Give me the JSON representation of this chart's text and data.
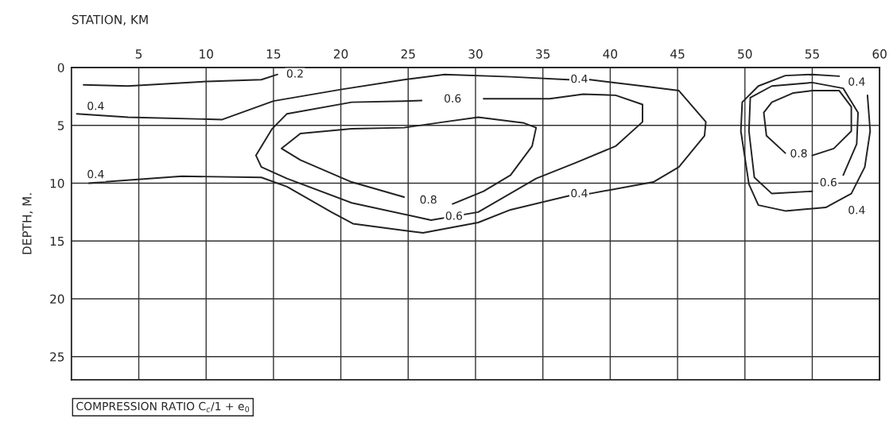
{
  "chart_data": {
    "type": "line",
    "xlabel": "STATION, KM",
    "ylabel": "DEPTH, M.",
    "xlim": [
      0,
      60
    ],
    "xticks": [
      5,
      10,
      15,
      20,
      25,
      30,
      35,
      40,
      45,
      50,
      55,
      60
    ],
    "ylim": [
      27,
      0
    ],
    "yticks": [
      0,
      5,
      10,
      15,
      20,
      25
    ],
    "grid": true,
    "series": [
      {
        "color": "#222222",
        "x": [
          0.9,
          4.2,
          10.1,
          14.1,
          15.3
        ],
        "values": [
          1.5,
          1.6,
          1.2,
          1.05,
          0.6
        ]
      },
      {
        "color": "#222222",
        "x": [
          0.4,
          4.2,
          11.2,
          15,
          20,
          24.7,
          27.7,
          32.6,
          36.9,
          38.5,
          42.4,
          45.1,
          47.1,
          47,
          45.1,
          43.2,
          38.5,
          36.9,
          32.6,
          30.2,
          26.1,
          20.9,
          19.3,
          16,
          14.1,
          8.2,
          2.3,
          1.3
        ],
        "values": [
          4.0,
          4.3,
          4.5,
          2.9,
          1.9,
          1.05,
          0.6,
          0.8,
          1.05,
          1.05,
          1.6,
          2.0,
          4.7,
          5.9,
          8.6,
          9.9,
          10.9,
          11.1,
          12.3,
          13.4,
          14.3,
          13.5,
          12.5,
          10.3,
          9.5,
          9.4,
          9.9,
          10.0
        ]
      },
      {
        "color": "#222222",
        "x": [
          30.6,
          35.5,
          38,
          40.4,
          42.4,
          42.4,
          40.4,
          37.5,
          34.5,
          30.2,
          26.7,
          20.8,
          16,
          14.1,
          13.7,
          14.9,
          16,
          20.8,
          24.7,
          26.0
        ],
        "values": [
          2.7,
          2.7,
          2.3,
          2.4,
          3.2,
          4.7,
          6.8,
          8.2,
          9.6,
          12.5,
          13.2,
          11.7,
          9.6,
          8.6,
          7.6,
          5.3,
          4.0,
          3.0,
          2.9,
          2.85
        ]
      },
      {
        "color": "#222222",
        "x": [
          24.7,
          20.8,
          17,
          15.6,
          17,
          20.8,
          24.7,
          27.7,
          30.2,
          33.6,
          34.5,
          34.2,
          32.6,
          30.6,
          28.3
        ],
        "values": [
          11.2,
          9.9,
          8.0,
          7.0,
          5.7,
          5.3,
          5.2,
          4.7,
          4.3,
          4.8,
          5.2,
          6.8,
          9.3,
          10.7,
          11.8
        ]
      },
      {
        "color": "#222222",
        "x": [
          59.1,
          59.3,
          58.9,
          57.9,
          56,
          53,
          51,
          50.3,
          49.7,
          49.8,
          51,
          53,
          55,
          57.0
        ],
        "values": [
          2.4,
          5.5,
          8.6,
          10.9,
          12.1,
          12.4,
          11.9,
          10.1,
          5.5,
          3.0,
          1.6,
          0.7,
          0.6,
          0.75
        ]
      },
      {
        "color": "#222222",
        "x": [
          55,
          52,
          50.7,
          50.3,
          50.4,
          52,
          55,
          57.3,
          58.4,
          58.3,
          57.3
        ],
        "values": [
          10.7,
          10.9,
          9.5,
          5.5,
          2.6,
          1.6,
          1.3,
          1.8,
          3.9,
          6.6,
          9.3
        ]
      },
      {
        "color": "#222222",
        "x": [
          53,
          51.6,
          51.4,
          52,
          53.6,
          55,
          57,
          57.9,
          57.9,
          56.6,
          55
        ],
        "values": [
          7.4,
          5.9,
          3.9,
          3.0,
          2.2,
          2.0,
          2.0,
          3.4,
          5.5,
          7.0,
          7.6
        ]
      }
    ],
    "annotations": [
      {
        "text": "0.2",
        "x": 16.6,
        "y": 0.6
      },
      {
        "text": "0.4",
        "x": 1.8,
        "y": 3.4
      },
      {
        "text": "0.4",
        "x": 37.7,
        "y": 1.05
      },
      {
        "text": "0.4",
        "x": 37.7,
        "y": 10.95
      },
      {
        "text": "0.4",
        "x": 1.8,
        "y": 9.3
      },
      {
        "text": "0.6",
        "x": 28.3,
        "y": 2.75
      },
      {
        "text": "0.6",
        "x": 28.4,
        "y": 12.9
      },
      {
        "text": "0.8",
        "x": 26.5,
        "y": 11.5
      },
      {
        "text": "0.4",
        "x": 58.3,
        "y": 1.3
      },
      {
        "text": "0.6",
        "x": 56.2,
        "y": 10.0
      },
      {
        "text": "0.4",
        "x": 58.3,
        "y": 12.4
      },
      {
        "text": "0.8",
        "x": 54.0,
        "y": 7.5
      },
      "COMPRESSION RATIO C$_{c}$/1 + e$_{0}$"
    ]
  }
}
